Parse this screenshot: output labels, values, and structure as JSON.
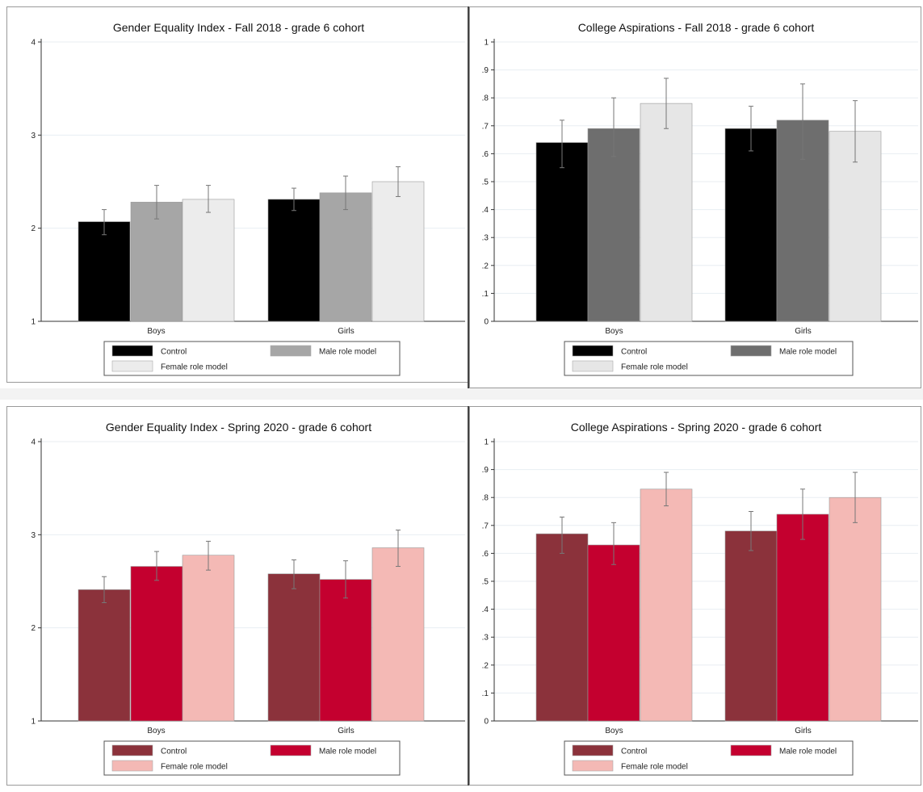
{
  "chart_data": [
    {
      "type": "bar",
      "title": "Gender Equality Index - Fall 2018 - grade 6 cohort",
      "categories": [
        "Boys",
        "Girls"
      ],
      "ylim": [
        1,
        4
      ],
      "yticks": [
        "1",
        "2",
        "3",
        "4"
      ],
      "yticks_values": [
        1,
        2,
        3,
        4
      ],
      "legend_position": "bottom",
      "grid": true,
      "series": [
        {
          "name": "Control",
          "color": "#000000",
          "values": [
            2.07,
            2.31
          ],
          "ci_low": [
            1.93,
            2.19
          ],
          "ci_high": [
            2.2,
            2.43
          ]
        },
        {
          "name": "Male role model",
          "color": "#a6a6a6",
          "values": [
            2.28,
            2.38
          ],
          "ci_low": [
            2.1,
            2.2
          ],
          "ci_high": [
            2.46,
            2.56
          ]
        },
        {
          "name": "Female role model",
          "color": "#ececec",
          "values": [
            2.31,
            2.5
          ],
          "ci_low": [
            2.17,
            2.34
          ],
          "ci_high": [
            2.46,
            2.66
          ]
        }
      ]
    },
    {
      "type": "bar",
      "title": "College Aspirations - Fall 2018 - grade 6 cohort",
      "categories": [
        "Boys",
        "Girls"
      ],
      "ylim": [
        0,
        1
      ],
      "yticks": [
        "0",
        ".1",
        ".2",
        ".3",
        ".4",
        ".5",
        ".6",
        ".7",
        ".8",
        ".9",
        "1"
      ],
      "yticks_values": [
        0,
        0.1,
        0.2,
        0.3,
        0.4,
        0.5,
        0.6,
        0.7,
        0.8,
        0.9,
        1
      ],
      "legend_position": "bottom",
      "grid": true,
      "series": [
        {
          "name": "Control",
          "color": "#000000",
          "values": [
            0.64,
            0.69
          ],
          "ci_low": [
            0.55,
            0.61
          ],
          "ci_high": [
            0.72,
            0.77
          ]
        },
        {
          "name": "Male role model",
          "color": "#6e6e6e",
          "values": [
            0.69,
            0.72
          ],
          "ci_low": [
            0.59,
            0.58
          ],
          "ci_high": [
            0.8,
            0.85
          ]
        },
        {
          "name": "Female role model",
          "color": "#e6e6e6",
          "values": [
            0.78,
            0.68
          ],
          "ci_low": [
            0.69,
            0.57
          ],
          "ci_high": [
            0.87,
            0.79
          ]
        }
      ]
    },
    {
      "type": "bar",
      "title": "Gender Equality Index - Spring 2020 - grade 6 cohort",
      "categories": [
        "Boys",
        "Girls"
      ],
      "ylim": [
        1,
        4
      ],
      "yticks": [
        "1",
        "2",
        "3",
        "4"
      ],
      "yticks_values": [
        1,
        2,
        3,
        4
      ],
      "legend_position": "bottom",
      "grid": true,
      "series": [
        {
          "name": "Control",
          "color": "#8b323b",
          "values": [
            2.41,
            2.58
          ],
          "ci_low": [
            2.27,
            2.42
          ],
          "ci_high": [
            2.55,
            2.73
          ]
        },
        {
          "name": "Male role model",
          "color": "#c4002f",
          "values": [
            2.66,
            2.52
          ],
          "ci_low": [
            2.51,
            2.32
          ],
          "ci_high": [
            2.82,
            2.72
          ]
        },
        {
          "name": "Female role model",
          "color": "#f4b9b5",
          "values": [
            2.78,
            2.86
          ],
          "ci_low": [
            2.62,
            2.66
          ],
          "ci_high": [
            2.93,
            3.05
          ]
        }
      ]
    },
    {
      "type": "bar",
      "title": "College Aspirations - Spring 2020 - grade 6 cohort",
      "categories": [
        "Boys",
        "Girls"
      ],
      "ylim": [
        0,
        1
      ],
      "yticks": [
        "0",
        ".1",
        ".2",
        ".3",
        ".4",
        ".5",
        ".6",
        ".7",
        ".8",
        ".9",
        "1"
      ],
      "yticks_values": [
        0,
        0.1,
        0.2,
        0.3,
        0.4,
        0.5,
        0.6,
        0.7,
        0.8,
        0.9,
        1
      ],
      "legend_position": "bottom",
      "grid": true,
      "series": [
        {
          "name": "Control",
          "color": "#8b323b",
          "values": [
            0.67,
            0.68
          ],
          "ci_low": [
            0.6,
            0.61
          ],
          "ci_high": [
            0.73,
            0.75
          ]
        },
        {
          "name": "Male role model",
          "color": "#c4002f",
          "values": [
            0.63,
            0.74
          ],
          "ci_low": [
            0.56,
            0.65
          ],
          "ci_high": [
            0.71,
            0.83
          ]
        },
        {
          "name": "Female role model",
          "color": "#f4b9b5",
          "values": [
            0.83,
            0.8
          ],
          "ci_low": [
            0.77,
            0.71
          ],
          "ci_high": [
            0.89,
            0.89
          ]
        }
      ]
    }
  ]
}
